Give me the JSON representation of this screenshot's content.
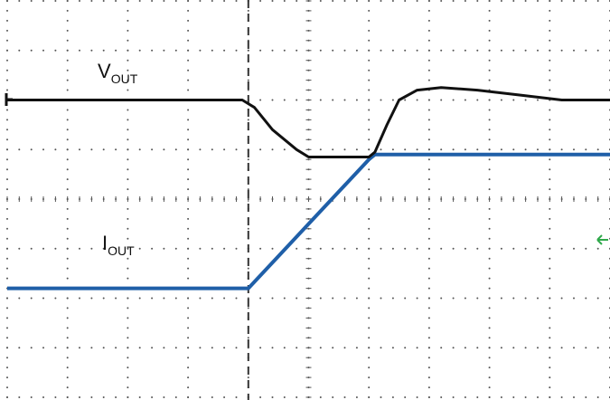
{
  "colors": {
    "background": "#ffffff",
    "grid": "#555555",
    "trigger_cursor": "#333333",
    "vout_trace": "#111111",
    "iout_trace": "#1f5fa8",
    "marker": "#2ea84a"
  },
  "labels": {
    "vout_main": "V",
    "vout_sub": "OUT",
    "iout_main": "I",
    "iout_sub": "OUT"
  },
  "icons": {
    "vout_ground_marker": "left-arrow-marker-icon",
    "trigger_marker": "green-arrow-marker-icon"
  },
  "chart_data": {
    "type": "line",
    "title": "",
    "xlabel": "",
    "ylabel": "",
    "xlim": [
      0,
      10
    ],
    "ylim": [
      -4,
      4
    ],
    "grid": true,
    "grid_divisions": {
      "x": 10,
      "y": 8
    },
    "series": [
      {
        "name": "VOUT",
        "x": [
          0,
          3.9,
          4.1,
          4.4,
          4.8,
          5.0,
          5.5,
          6.0,
          6.1,
          6.3,
          6.5,
          6.8,
          7.2,
          7.8,
          8.5,
          9.2,
          10.0
        ],
        "y": [
          2.0,
          2.0,
          1.85,
          1.4,
          1.0,
          0.85,
          0.85,
          0.85,
          0.95,
          1.5,
          2.0,
          2.2,
          2.25,
          2.2,
          2.1,
          2.0,
          2.0
        ]
      },
      {
        "name": "IOUT",
        "x": [
          0,
          4.0,
          4.5,
          5.0,
          5.5,
          6.0,
          6.1,
          10.0
        ],
        "y": [
          -1.8,
          -1.8,
          -1.15,
          -0.5,
          0.15,
          0.8,
          0.9,
          0.9
        ]
      }
    ],
    "trigger_x": 4.0
  }
}
